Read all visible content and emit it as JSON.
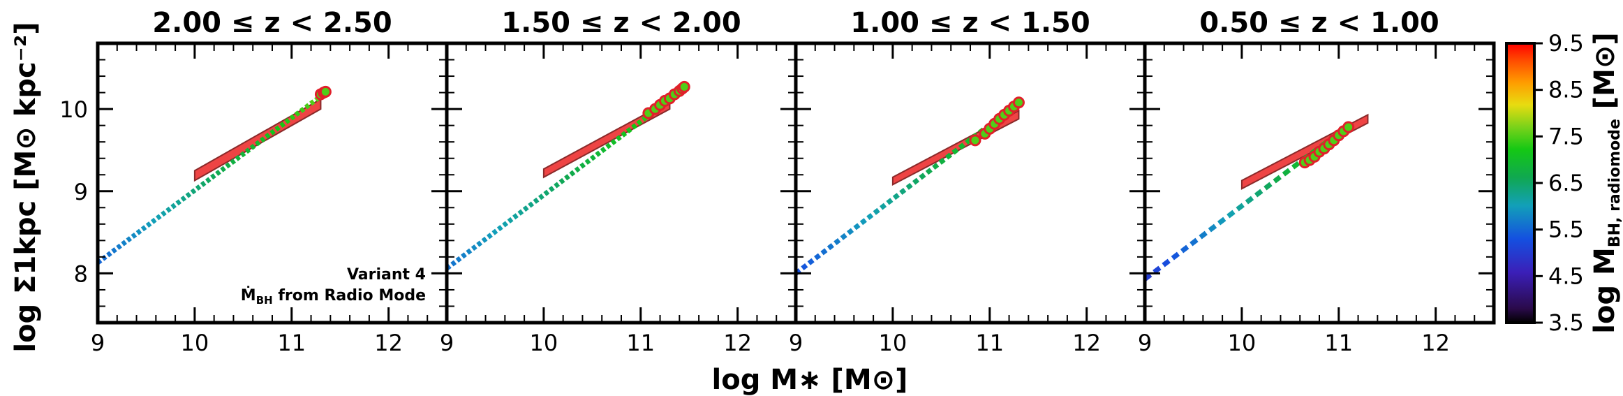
{
  "chart_data": {
    "type": "line",
    "xlabel": "log M∗ [M⊙]",
    "ylabel": "log Σ1kpc [M⊙ kpc⁻²]",
    "xlim": [
      9,
      12.6
    ],
    "ylim": [
      7.4,
      10.8
    ],
    "xticks": [
      9,
      10,
      11,
      12
    ],
    "xtick_labels": [
      "9",
      "10",
      "11",
      "12"
    ],
    "yticks": [
      8,
      9,
      10
    ],
    "ytick_labels": [
      "8",
      "9",
      "10"
    ],
    "annotation": {
      "line1": "Variant 4",
      "line2_main": "Ṁ",
      "line2_sub": "BH",
      "line2_rest": " from Radio Mode"
    },
    "colorbar": {
      "label": "log M",
      "label_sub": "BH, radiomode",
      "label_rest": " [M⊙]",
      "range": [
        3.5,
        9.5
      ],
      "ticks": [
        3.5,
        4.5,
        5.5,
        6.5,
        7.5,
        8.5,
        9.5
      ],
      "tick_labels": [
        "3.5",
        "4.5",
        "5.5",
        "6.5",
        "7.5",
        "8.5",
        "9.5"
      ],
      "colormap": "rainbow"
    },
    "panels": [
      {
        "title": "2.00 ≤ z < 2.50",
        "track": {
          "x0": 9.0,
          "y0": 8.13,
          "x1": 11.35,
          "y1": 10.2,
          "m0": 5.5,
          "m1": 7.6,
          "segments": 46
        },
        "points": [
          [
            11.3,
            10.18
          ],
          [
            11.33,
            10.2
          ],
          [
            11.35,
            10.21
          ]
        ],
        "point_mbh": 7.5,
        "band": {
          "x0": 10.0,
          "x1": 11.3,
          "y0_low": 9.13,
          "y0_high": 9.25,
          "y1_low": 10.0,
          "y1_high": 10.12
        }
      },
      {
        "title": "1.50 ≤ z < 2.00",
        "track": {
          "x0": 9.0,
          "y0": 8.06,
          "x1": 11.45,
          "y1": 10.25,
          "m0": 5.6,
          "m1": 7.6,
          "segments": 46
        },
        "points": [
          [
            11.08,
            9.95
          ],
          [
            11.15,
            10.0
          ],
          [
            11.2,
            10.05
          ],
          [
            11.25,
            10.1
          ],
          [
            11.3,
            10.13
          ],
          [
            11.35,
            10.18
          ],
          [
            11.4,
            10.22
          ],
          [
            11.43,
            10.25
          ],
          [
            11.45,
            10.27
          ]
        ],
        "point_mbh": 7.5,
        "band": {
          "x0": 10.0,
          "x1": 11.3,
          "y0_low": 9.17,
          "y0_high": 9.27,
          "y1_low": 10.0,
          "y1_high": 10.1
        }
      },
      {
        "title": "1.00 ≤ z < 1.50",
        "track": {
          "x0": 9.0,
          "y0": 8.0,
          "x1": 11.3,
          "y1": 10.08,
          "m0": 5.3,
          "m1": 7.5,
          "segments": 34
        },
        "points": [
          [
            10.85,
            9.62
          ],
          [
            10.95,
            9.7
          ],
          [
            11.0,
            9.76
          ],
          [
            11.05,
            9.82
          ],
          [
            11.1,
            9.88
          ],
          [
            11.15,
            9.93
          ],
          [
            11.2,
            9.98
          ],
          [
            11.25,
            10.03
          ],
          [
            11.3,
            10.08
          ]
        ],
        "point_mbh": 7.5,
        "band": {
          "x0": 10.0,
          "x1": 11.3,
          "y0_low": 9.08,
          "y0_high": 9.17,
          "y1_low": 9.88,
          "y1_high": 9.98
        }
      },
      {
        "title": "0.50 ≤ z < 1.00",
        "track": {
          "x0": 9.0,
          "y0": 7.93,
          "x1": 11.1,
          "y1": 9.8,
          "m0": 5.0,
          "m1": 7.5,
          "segments": 22
        },
        "points": [
          [
            10.65,
            9.35
          ],
          [
            10.7,
            9.38
          ],
          [
            10.75,
            9.42
          ],
          [
            10.8,
            9.48
          ],
          [
            10.85,
            9.52
          ],
          [
            10.9,
            9.57
          ],
          [
            10.95,
            9.62
          ],
          [
            11.0,
            9.68
          ],
          [
            11.05,
            9.73
          ],
          [
            11.1,
            9.78
          ]
        ],
        "point_mbh": 7.5,
        "band": {
          "x0": 10.0,
          "x1": 11.3,
          "y0_low": 9.03,
          "y0_high": 9.13,
          "y1_low": 9.83,
          "y1_high": 9.93
        }
      }
    ]
  }
}
